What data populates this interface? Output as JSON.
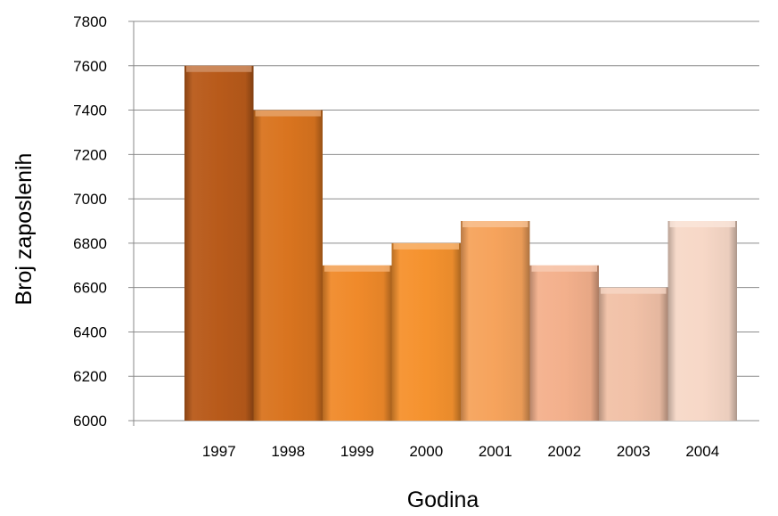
{
  "chart_data": {
    "type": "bar",
    "title": "",
    "xlabel": "Godina",
    "ylabel": "Broj zaposlenih",
    "categories": [
      "1997",
      "1998",
      "1999",
      "2000",
      "2001",
      "2002",
      "2003",
      "2004"
    ],
    "values": [
      7600,
      7400,
      6700,
      6800,
      6900,
      6700,
      6600,
      6900
    ],
    "ylim": [
      6000,
      7800
    ],
    "yticks": [
      6000,
      6200,
      6400,
      6600,
      6800,
      7000,
      7200,
      7400,
      7600,
      7800
    ],
    "grid": true,
    "legend": "none",
    "colors": [
      "#b85a1a",
      "#d9741f",
      "#f08a2a",
      "#f5922e",
      "#f6a35c",
      "#f3b08c",
      "#f1c1a7",
      "#f7d8c7"
    ]
  }
}
